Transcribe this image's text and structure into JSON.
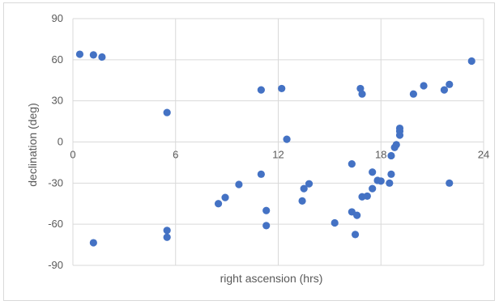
{
  "colors": {
    "marker": "#4472c4",
    "grid": "#d9d9d9",
    "text": "#595959"
  },
  "chart_data": {
    "type": "scatter",
    "title": "",
    "xlabel": "right ascension (hrs)",
    "ylabel": "declination (deg)",
    "xlim": [
      0,
      24
    ],
    "ylim": [
      -90,
      90
    ],
    "x_ticks": [
      0,
      6,
      12,
      18,
      24
    ],
    "y_ticks": [
      90,
      60,
      30,
      0,
      -30,
      -60,
      -90
    ],
    "x_tick_labels": [
      "0",
      "6",
      "12",
      "18",
      "24"
    ],
    "y_tick_labels": [
      "90",
      "60",
      "30",
      "0",
      "-30",
      "-60",
      "-90"
    ],
    "grid": true,
    "legend": "none",
    "series": [
      {
        "marker": "circle",
        "points": [
          [
            0.4,
            64
          ],
          [
            1.2,
            63.5
          ],
          [
            1.7,
            62
          ],
          [
            1.2,
            -73.5
          ],
          [
            5.5,
            21.5
          ],
          [
            5.5,
            -64.5
          ],
          [
            5.5,
            -69.5
          ],
          [
            8.5,
            -45
          ],
          [
            8.9,
            -40.5
          ],
          [
            9.7,
            -31
          ],
          [
            11.0,
            -23.5
          ],
          [
            11.0,
            38
          ],
          [
            11.3,
            -50
          ],
          [
            11.3,
            -61
          ],
          [
            12.2,
            39
          ],
          [
            12.5,
            2
          ],
          [
            13.4,
            -43
          ],
          [
            13.5,
            -34
          ],
          [
            13.8,
            -30.5
          ],
          [
            15.3,
            -59
          ],
          [
            16.3,
            -51
          ],
          [
            16.3,
            -16
          ],
          [
            16.5,
            -67.5
          ],
          [
            16.6,
            -53.5
          ],
          [
            16.8,
            39
          ],
          [
            16.9,
            35
          ],
          [
            16.9,
            -40
          ],
          [
            17.2,
            -39.5
          ],
          [
            17.5,
            -22
          ],
          [
            17.5,
            -34
          ],
          [
            17.8,
            -28
          ],
          [
            18.0,
            -28.5
          ],
          [
            18.5,
            -30
          ],
          [
            18.6,
            -23.5
          ],
          [
            18.6,
            -10
          ],
          [
            18.8,
            -4
          ],
          [
            18.9,
            -2
          ],
          [
            19.1,
            10
          ],
          [
            19.1,
            8
          ],
          [
            19.1,
            5
          ],
          [
            19.9,
            35
          ],
          [
            20.5,
            41
          ],
          [
            21.7,
            38
          ],
          [
            22.0,
            42
          ],
          [
            22.0,
            -30
          ],
          [
            23.3,
            59
          ]
        ]
      }
    ]
  }
}
